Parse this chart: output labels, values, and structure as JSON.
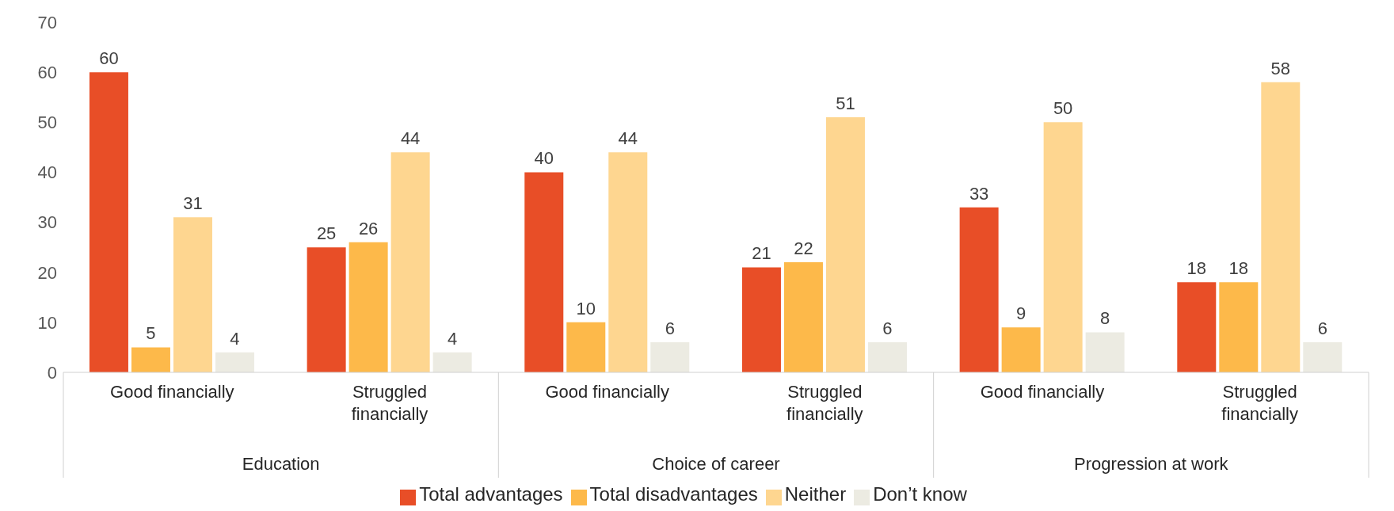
{
  "chart_data": {
    "type": "bar",
    "categories": [
      "Good financially",
      "Struggled financially",
      "Good financially",
      "Struggled financially",
      "Good financially",
      "Struggled financially"
    ],
    "annotations": [
      "Education",
      "Choice of career",
      "Progression at work"
    ],
    "series": [
      {
        "name": "Total advantages",
        "color": "#e84e27",
        "values": [
          60,
          25,
          40,
          21,
          33,
          18
        ]
      },
      {
        "name": "Total disadvantages",
        "color": "#fdb94a",
        "values": [
          5,
          26,
          10,
          22,
          9,
          18
        ]
      },
      {
        "name": "Neither",
        "color": "#fed690",
        "values": [
          31,
          44,
          44,
          51,
          50,
          58
        ]
      },
      {
        "name": "Don’t know",
        "color": "#ecebe2",
        "values": [
          4,
          4,
          6,
          6,
          8,
          6
        ]
      }
    ],
    "ylim": [
      0,
      70
    ],
    "yticks": [
      0,
      10,
      20,
      30,
      40,
      50,
      60,
      70
    ],
    "data_labels": true,
    "legend": "bottom",
    "grid": false
  }
}
